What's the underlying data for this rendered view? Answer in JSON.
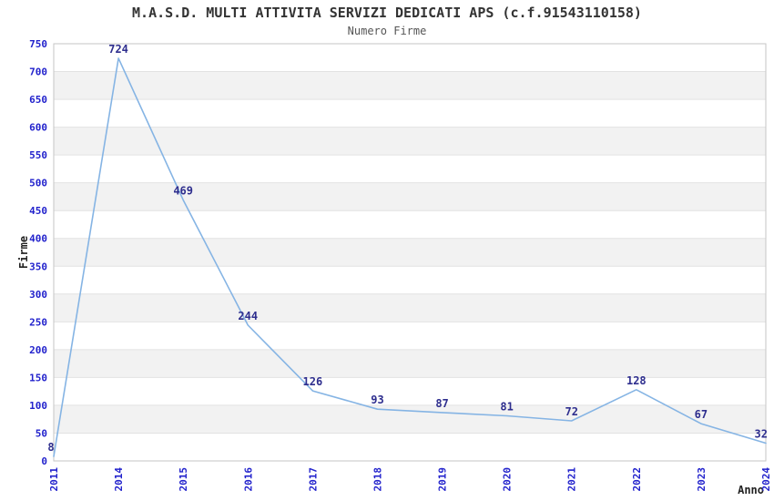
{
  "chart_data": {
    "type": "line",
    "title": "M.A.S.D. MULTI ATTIVITA SERVIZI DEDICATI APS (c.f.91543110158)",
    "subtitle": "Numero Firme",
    "xlabel": "Anno",
    "ylabel": "Firme",
    "categories": [
      "2011",
      "2014",
      "2015",
      "2016",
      "2017",
      "2018",
      "2019",
      "2020",
      "2021",
      "2022",
      "2023",
      "2024"
    ],
    "values": [
      8,
      724,
      469,
      244,
      126,
      93,
      87,
      81,
      72,
      128,
      67,
      32
    ],
    "ylim": [
      0,
      750
    ],
    "ytick_step": 50,
    "grid": "horizontal-bands",
    "legend": "none",
    "marker": "none",
    "data_labels_shown": true,
    "x_tick_rotation": -90,
    "colors": {
      "line": "#85b4e4",
      "data_label": "#2e2e8e",
      "tick_label": "#2222cc",
      "band": "#f2f2f2",
      "gridline": "#e2e2e2",
      "plot_border": "#c6c6c6",
      "title": "#333333",
      "subtitle": "#555555",
      "axis_label": "#222222",
      "background": "#ffffff"
    }
  }
}
